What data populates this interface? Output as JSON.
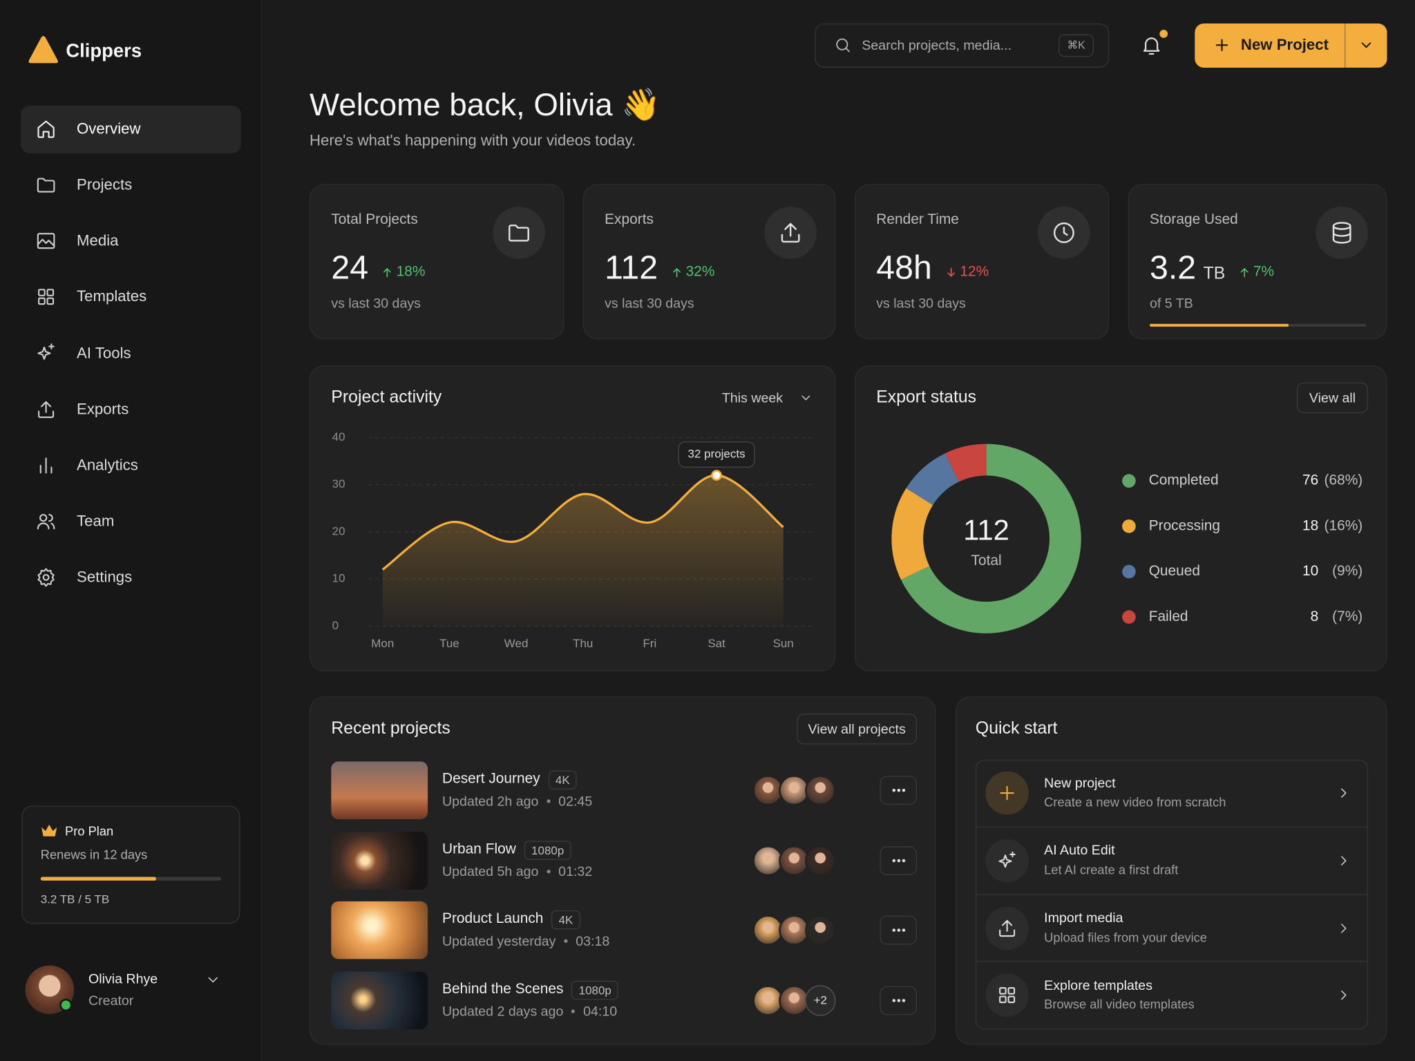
{
  "sidebar": {
    "brand": "Clippers",
    "nav": [
      {
        "label": "Overview",
        "active": true
      },
      {
        "label": "Projects"
      },
      {
        "label": "Media"
      },
      {
        "label": "Templates"
      },
      {
        "label": "AI Tools"
      },
      {
        "label": "Exports"
      },
      {
        "label": "Analytics"
      },
      {
        "label": "Team"
      },
      {
        "label": "Settings"
      }
    ],
    "plan": {
      "title": "Pro Plan",
      "renews": "Renews in 12 days",
      "usage": "3.2 TB / 5 TB"
    },
    "user": {
      "name": "Olivia Rhye",
      "role": "Creator"
    }
  },
  "header": {
    "search_placeholder": "Search projects, media...",
    "shortcut": "⌘K",
    "new_button": "New Project"
  },
  "welcome": {
    "title": "Welcome back, Olivia 👋",
    "subtitle": "Here's what's happening with your videos today."
  },
  "stats": [
    {
      "title": "Total Projects",
      "value": 24,
      "change": "18%",
      "trend": "up",
      "note": "vs last 30 days"
    },
    {
      "title": "Exports",
      "value": 112,
      "change": "32%",
      "trend": "up",
      "note": "vs last 30 days"
    },
    {
      "title": "Render Time",
      "value": "48h",
      "change": "12%",
      "trend": "down",
      "note": "vs last 30 days"
    },
    {
      "title": "Storage Used",
      "value": 3.2,
      "unit": "TB",
      "change": "7%",
      "trend": "up",
      "note": "of 5 TB"
    }
  ],
  "chart_data": [
    {
      "type": "line",
      "title": "Project activity",
      "range": "This week",
      "categories": [
        "Mon",
        "Tue",
        "Wed",
        "Thu",
        "Fri",
        "Sat",
        "Sun"
      ],
      "values": [
        12,
        22,
        18,
        28,
        22,
        32,
        21
      ],
      "color": "#f4ae3d",
      "ylim": [
        0,
        40
      ],
      "yticks": [
        0,
        10,
        20,
        30,
        40
      ],
      "grid": true,
      "annotation": "32 projects"
    },
    {
      "type": "donut",
      "title": "Export status",
      "action": "View all",
      "center_value": 112,
      "center_label": "Total",
      "categories": [
        "Completed",
        "Processing",
        "Queued",
        "Failed"
      ],
      "values": [
        76,
        18,
        10,
        8
      ],
      "percent_labels": [
        "(68%)",
        "(16%)",
        "(9%)",
        "(7%)"
      ],
      "colors": [
        "#62a765",
        "#f0aa3c",
        "#56759f",
        "#c9463f"
      ]
    }
  ],
  "recent_projects": {
    "title": "Recent projects",
    "action": "View all projects",
    "rows": [
      {
        "title": "Desert Journey",
        "badge": "4K",
        "updated": "Updated 2h ago",
        "duration": "02:45"
      },
      {
        "title": "Urban Flow",
        "badge": "1080p",
        "updated": "Updated 5h ago",
        "duration": "01:32"
      },
      {
        "title": "Product Launch",
        "badge": "4K",
        "updated": "Updated yesterday",
        "duration": "03:18"
      },
      {
        "title": "Behind the Scenes",
        "badge": "1080p",
        "updated": "Updated 2 days ago",
        "duration": "04:10",
        "extra": "+2"
      }
    ]
  },
  "quick_start": {
    "title": "Quick start",
    "items": [
      {
        "title": "New project",
        "subtitle": "Create a new video from scratch"
      },
      {
        "title": "AI Auto Edit",
        "subtitle": "Let AI create a first draft"
      },
      {
        "title": "Import media",
        "subtitle": "Upload files from your device"
      },
      {
        "title": "Explore templates",
        "subtitle": "Browse all video templates"
      }
    ]
  }
}
